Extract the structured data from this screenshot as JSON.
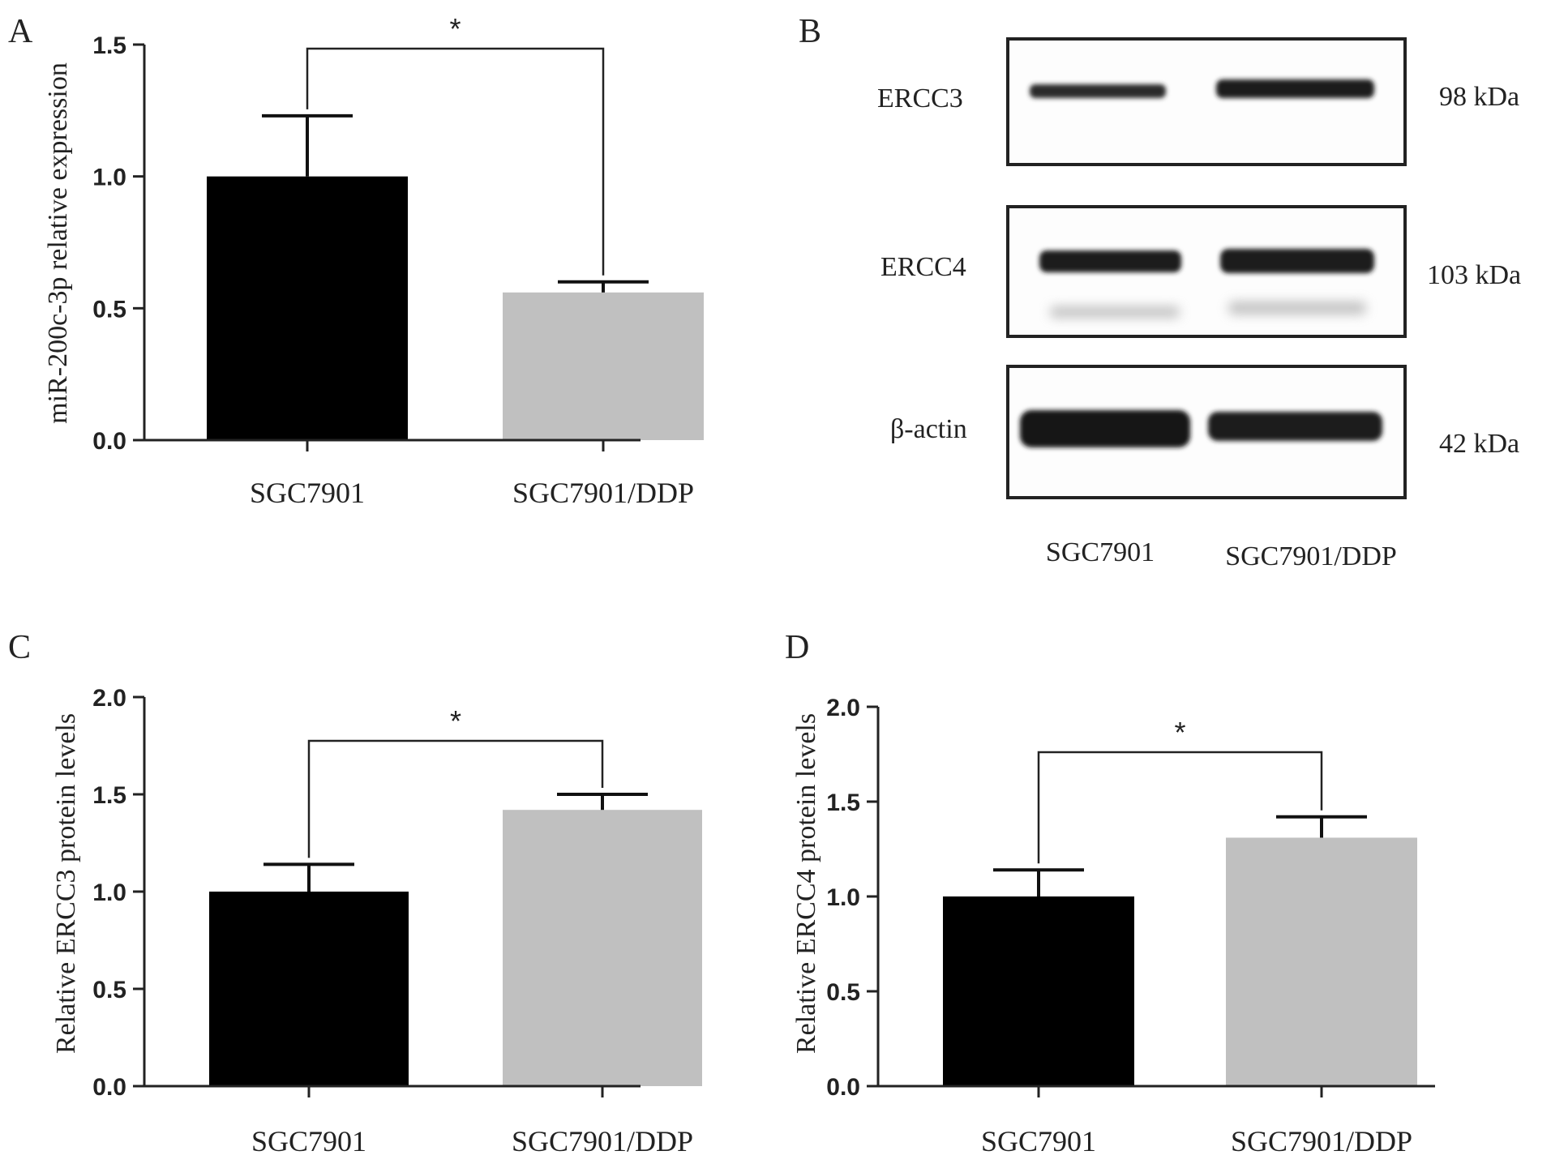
{
  "panels": {
    "a": {
      "letter": "A"
    },
    "b": {
      "letter": "B"
    },
    "c": {
      "letter": "C"
    },
    "d": {
      "letter": "D"
    }
  },
  "chart_data": [
    {
      "panel": "A",
      "type": "bar",
      "categories": [
        "SGC7901",
        "SGC7901/DDP"
      ],
      "values": [
        1.0,
        0.56
      ],
      "errors": [
        0.23,
        0.04
      ],
      "bar_colors": [
        "#000000",
        "#c0c0c0"
      ],
      "ylabel": "miR-200c-3p relative expression",
      "xlabel": "",
      "ylim": [
        0,
        1.5
      ],
      "yticks": [
        "0.0",
        "0.5",
        "1.0",
        "1.5"
      ],
      "significance": "*"
    },
    {
      "panel": "C",
      "type": "bar",
      "categories": [
        "SGC7901",
        "SGC7901/DDP"
      ],
      "values": [
        1.0,
        1.42
      ],
      "errors": [
        0.14,
        0.08
      ],
      "bar_colors": [
        "#000000",
        "#c0c0c0"
      ],
      "ylabel": "Relative ERCC3 protein levels",
      "xlabel": "",
      "ylim": [
        0,
        2.0
      ],
      "yticks": [
        "0.0",
        "0.5",
        "1.0",
        "1.5",
        "2.0"
      ],
      "significance": "*"
    },
    {
      "panel": "D",
      "type": "bar",
      "categories": [
        "SGC7901",
        "SGC7901/DDP"
      ],
      "values": [
        1.0,
        1.31
      ],
      "errors": [
        0.14,
        0.11
      ],
      "bar_colors": [
        "#000000",
        "#c0c0c0"
      ],
      "ylabel": "Relative ERCC4 protein levels",
      "xlabel": "",
      "ylim": [
        0,
        2.0
      ],
      "yticks": [
        "0.0",
        "0.5",
        "1.0",
        "1.5",
        "2.0"
      ],
      "significance": "*"
    }
  ],
  "western_blot": {
    "rows": [
      {
        "protein": "ERCC3",
        "size": "98 kDa"
      },
      {
        "protein": "ERCC4",
        "size": "103 kDa"
      },
      {
        "protein": "β-actin",
        "size": "42 kDa"
      }
    ],
    "lanes": [
      "SGC7901",
      "SGC7901/DDP"
    ]
  }
}
